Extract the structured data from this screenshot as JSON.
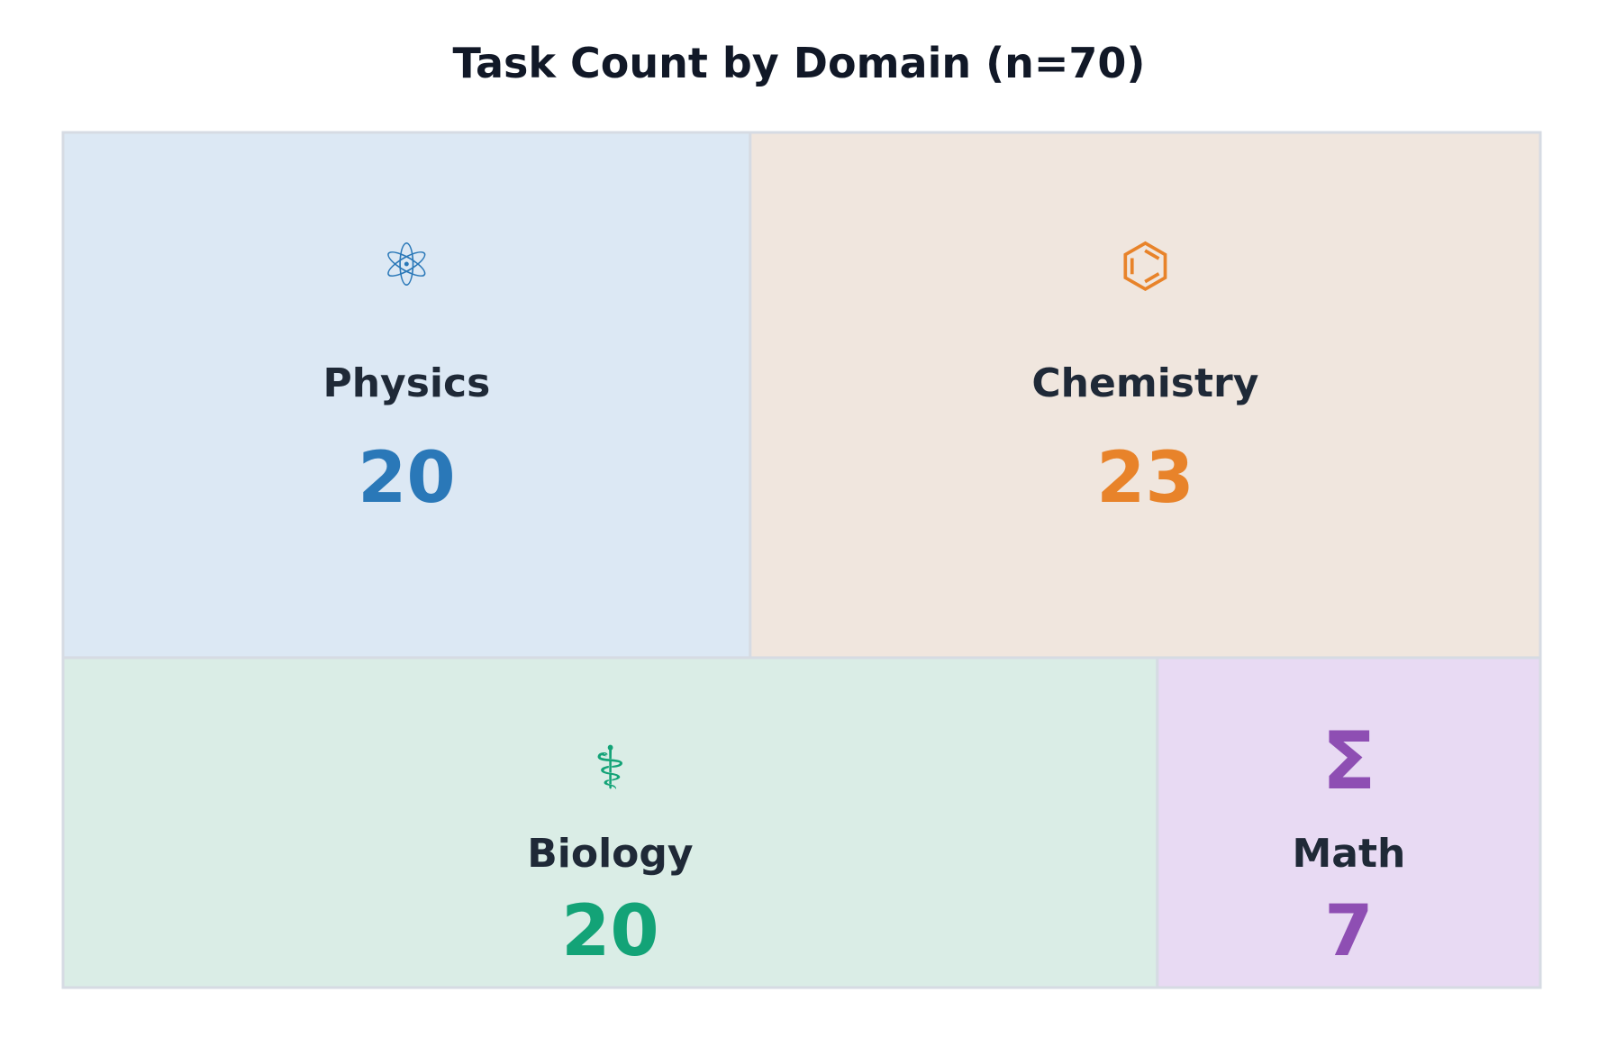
{
  "chart_data": {
    "type": "treemap",
    "title": "Task Count by Domain (n=70)",
    "total": 70,
    "items": [
      {
        "name": "Physics",
        "value": 20,
        "icon": "atom-icon",
        "glyph": "⚛",
        "color": "#2a78b8",
        "fill": "#dce8f4"
      },
      {
        "name": "Chemistry",
        "value": 23,
        "icon": "benzene-icon",
        "glyph": "⌬",
        "color": "#e8832a",
        "fill": "#f0e6de"
      },
      {
        "name": "Biology",
        "value": 20,
        "icon": "caduceus-icon",
        "glyph": "⚕",
        "color": "#13a377",
        "fill": "#daede6"
      },
      {
        "name": "Math",
        "value": 7,
        "icon": "sigma-icon",
        "glyph": "Σ",
        "color": "#8e4eb3",
        "fill": "#e8daf3"
      }
    ],
    "border_color": "#d6dbe3"
  }
}
